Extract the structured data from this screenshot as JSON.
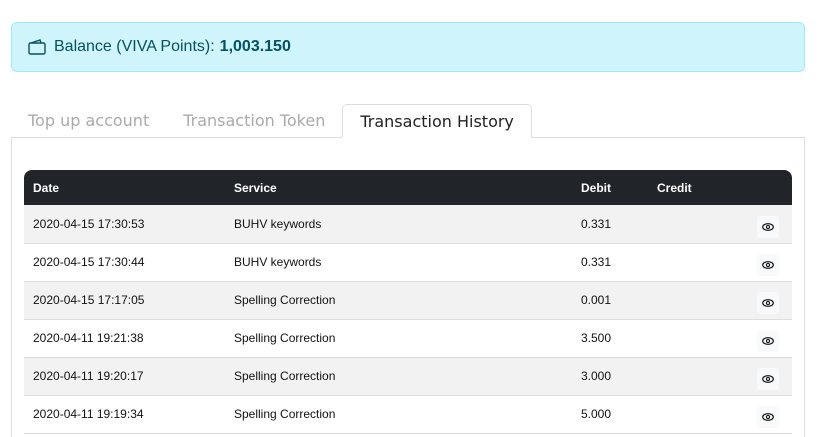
{
  "balance": {
    "label": "Balance (VIVA Points):",
    "value": "1,003.150"
  },
  "tabs": [
    {
      "label": "Top up account"
    },
    {
      "label": "Transaction Token"
    },
    {
      "label": "Transaction History"
    }
  ],
  "table": {
    "headers": [
      "Date",
      "Service",
      "Debit",
      "Credit"
    ],
    "rows": [
      {
        "date": "2020-04-15 17:30:53",
        "service": "BUHV keywords",
        "debit": "0.331",
        "credit": ""
      },
      {
        "date": "2020-04-15 17:30:44",
        "service": "BUHV keywords",
        "debit": "0.331",
        "credit": ""
      },
      {
        "date": "2020-04-15 17:17:05",
        "service": "Spelling Correction",
        "debit": "0.001",
        "credit": ""
      },
      {
        "date": "2020-04-11 19:21:38",
        "service": "Spelling Correction",
        "debit": "3.500",
        "credit": ""
      },
      {
        "date": "2020-04-11 19:20:17",
        "service": "Spelling Correction",
        "debit": "3.000",
        "credit": ""
      },
      {
        "date": "2020-04-11 19:19:34",
        "service": "Spelling Correction",
        "debit": "5.000",
        "credit": ""
      }
    ]
  }
}
